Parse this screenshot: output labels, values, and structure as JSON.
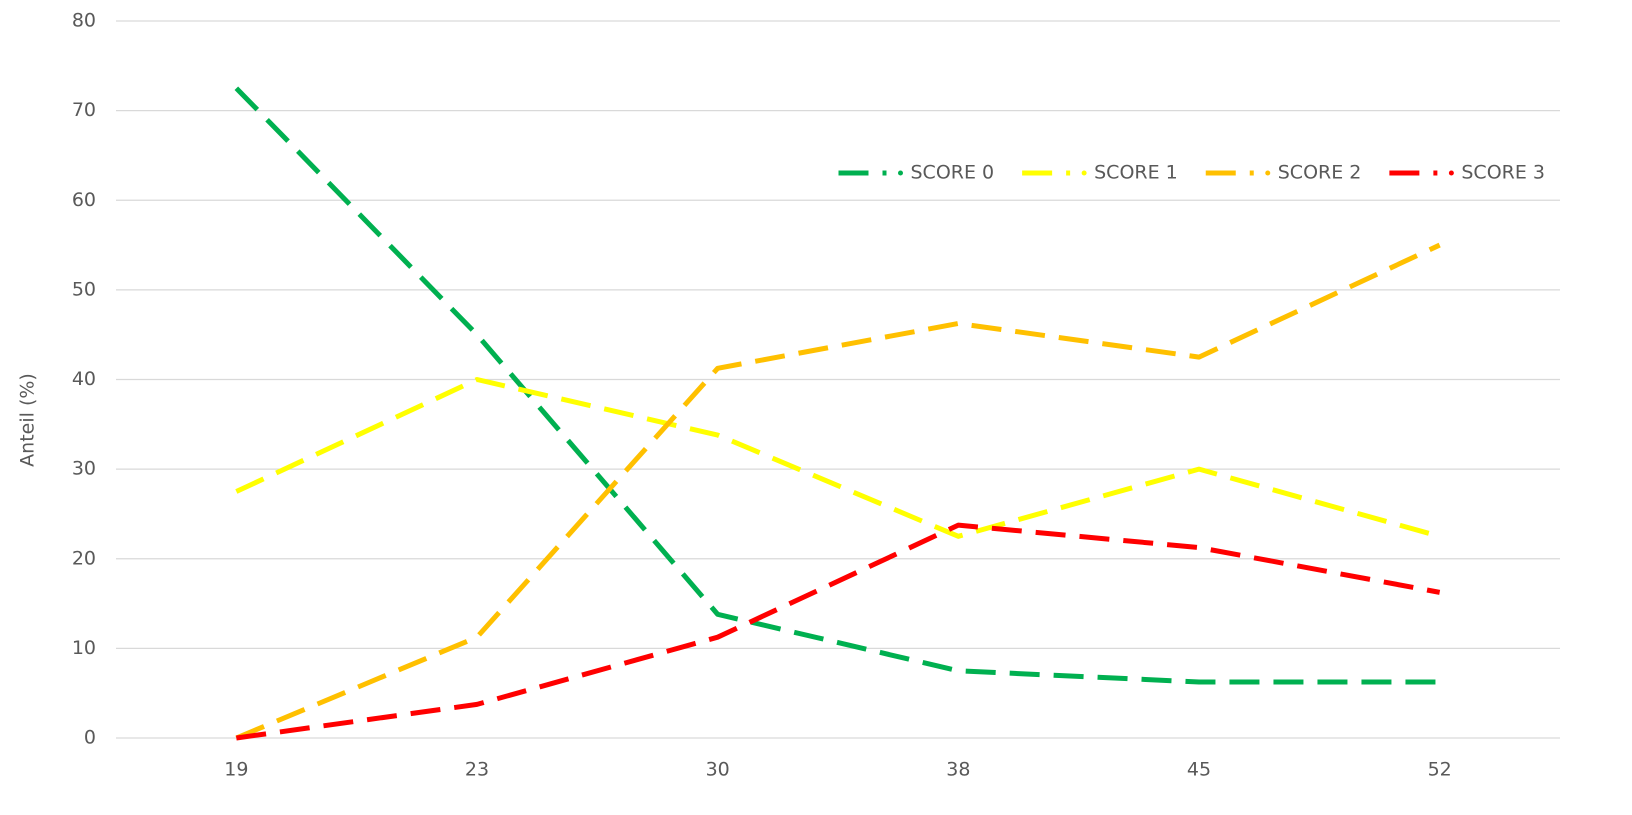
{
  "chart_data": {
    "type": "line",
    "y_axis_label": "Anteil (%)",
    "categories": [
      "19",
      "23",
      "30",
      "38",
      "45",
      "52"
    ],
    "series": [
      {
        "name": "SCORE 0",
        "color": "#00b050",
        "values": [
          72.5,
          45,
          13.8,
          7.5,
          6.25,
          6.25
        ]
      },
      {
        "name": "SCORE 1",
        "color": "#ffff00",
        "values": [
          27.5,
          40,
          33.8,
          22.5,
          30,
          22.5
        ]
      },
      {
        "name": "SCORE 2",
        "color": "#ffc000",
        "values": [
          0,
          11.25,
          41.25,
          46.25,
          42.5,
          55
        ]
      },
      {
        "name": "SCORE 3",
        "color": "#ff0000",
        "values": [
          0,
          3.75,
          11.25,
          23.75,
          21.25,
          16.25
        ]
      }
    ],
    "ylim": [
      0,
      80
    ],
    "yticks": [
      0,
      10,
      20,
      30,
      40,
      50,
      60,
      70,
      80
    ],
    "grid": true,
    "legend": "upper right",
    "line_style": "dashed"
  }
}
